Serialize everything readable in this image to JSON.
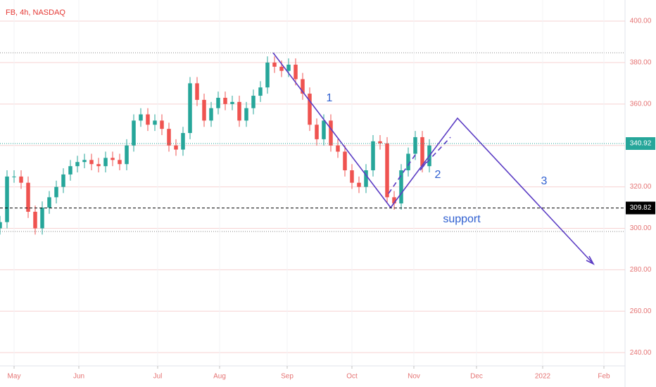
{
  "chart_data": {
    "type": "candlestick",
    "title": "FB, 4h, NASDAQ",
    "x": [
      -2,
      -1,
      0,
      1,
      2,
      3,
      4,
      5,
      6,
      7,
      8,
      9,
      10,
      11,
      12,
      13,
      14,
      15,
      16,
      17,
      18,
      19,
      20,
      21,
      22,
      23,
      24,
      25,
      26,
      27,
      28,
      29,
      30,
      31,
      32,
      33,
      34,
      35,
      36,
      37,
      38,
      39,
      40,
      41,
      42,
      43,
      44,
      45,
      46,
      47,
      48,
      49,
      50,
      51,
      52,
      53,
      54,
      55,
      56,
      57,
      58,
      59
    ],
    "open": [
      300,
      303,
      325,
      325,
      322,
      308,
      300,
      310,
      315,
      320,
      326,
      330,
      332,
      333,
      331,
      330,
      334,
      333,
      331,
      340,
      352,
      355,
      350,
      352,
      348,
      340,
      338,
      346,
      370,
      362,
      352,
      358,
      363,
      360,
      361,
      352,
      358,
      364,
      368,
      380,
      378,
      376,
      379,
      372,
      365,
      350,
      343,
      352,
      340,
      337,
      328,
      322,
      320,
      328,
      342,
      341,
      315,
      312,
      328,
      336,
      344,
      330
    ],
    "high": [
      306,
      328,
      328,
      328,
      325,
      311,
      313,
      318,
      323,
      329,
      333,
      335,
      336,
      336,
      334,
      337,
      337,
      336,
      343,
      355,
      358,
      358,
      355,
      355,
      351,
      343,
      349,
      373,
      373,
      365,
      361,
      366,
      366,
      364,
      364,
      361,
      367,
      371,
      383,
      383,
      381,
      382,
      382,
      375,
      368,
      353,
      355,
      355,
      343,
      340,
      331,
      325,
      331,
      345,
      345,
      344,
      318,
      331,
      339,
      347,
      347,
      343
    ],
    "low": [
      297,
      300,
      322,
      319,
      305,
      297,
      297,
      307,
      312,
      317,
      323,
      327,
      329,
      328,
      327,
      327,
      330,
      328,
      328,
      337,
      349,
      347,
      347,
      345,
      337,
      335,
      335,
      343,
      359,
      349,
      349,
      355,
      357,
      357,
      349,
      349,
      355,
      361,
      365,
      375,
      373,
      373,
      369,
      362,
      347,
      340,
      340,
      337,
      334,
      325,
      319,
      317,
      317,
      325,
      338,
      312,
      309,
      309,
      325,
      333,
      327,
      327
    ],
    "close": [
      303,
      325,
      325,
      322,
      308,
      300,
      310,
      315,
      320,
      326,
      330,
      332,
      333,
      331,
      330,
      334,
      333,
      331,
      340,
      352,
      355,
      350,
      352,
      348,
      340,
      338,
      346,
      370,
      362,
      352,
      358,
      363,
      360,
      361,
      352,
      358,
      364,
      368,
      380,
      378,
      376,
      379,
      372,
      365,
      350,
      343,
      352,
      340,
      337,
      328,
      322,
      320,
      328,
      342,
      341,
      315,
      312,
      328,
      336,
      344,
      330,
      340
    ],
    "up_color": "#26a69a",
    "down_color": "#ef5350",
    "xlim": [
      -2,
      86.8
    ],
    "xticks": [
      {
        "value": 0,
        "label": "May"
      },
      {
        "value": 9.2,
        "label": "Jun"
      },
      {
        "value": 20.4,
        "label": "Jul"
      },
      {
        "value": 29.2,
        "label": "Aug"
      },
      {
        "value": 38.8,
        "label": "Sep"
      },
      {
        "value": 48,
        "label": "Oct"
      },
      {
        "value": 56.8,
        "label": "Nov"
      },
      {
        "value": 65.7,
        "label": "Dec"
      },
      {
        "value": 75.1,
        "label": "2022"
      },
      {
        "value": 83.8,
        "label": "Feb"
      }
    ],
    "ylim": [
      233.6,
      410.2
    ],
    "yticks": [
      {
        "value": 240,
        "label": "240.00"
      },
      {
        "value": 260,
        "label": "260.00"
      },
      {
        "value": 280,
        "label": "280.00"
      },
      {
        "value": 300,
        "label": "300.00"
      },
      {
        "value": 320,
        "label": "320.00"
      },
      {
        "value": 340,
        "label": "340.00"
      },
      {
        "value": 360,
        "label": "360.00"
      },
      {
        "value": 380,
        "label": "380.00"
      },
      {
        "value": 400,
        "label": "400.00"
      }
    ],
    "grid": true,
    "price_lines": [
      {
        "value": 340.92,
        "color": "#26a69a"
      },
      {
        "value": 309.82,
        "color": "#000000"
      }
    ],
    "annotations": [
      "1",
      "2",
      "3",
      "support"
    ]
  }
}
